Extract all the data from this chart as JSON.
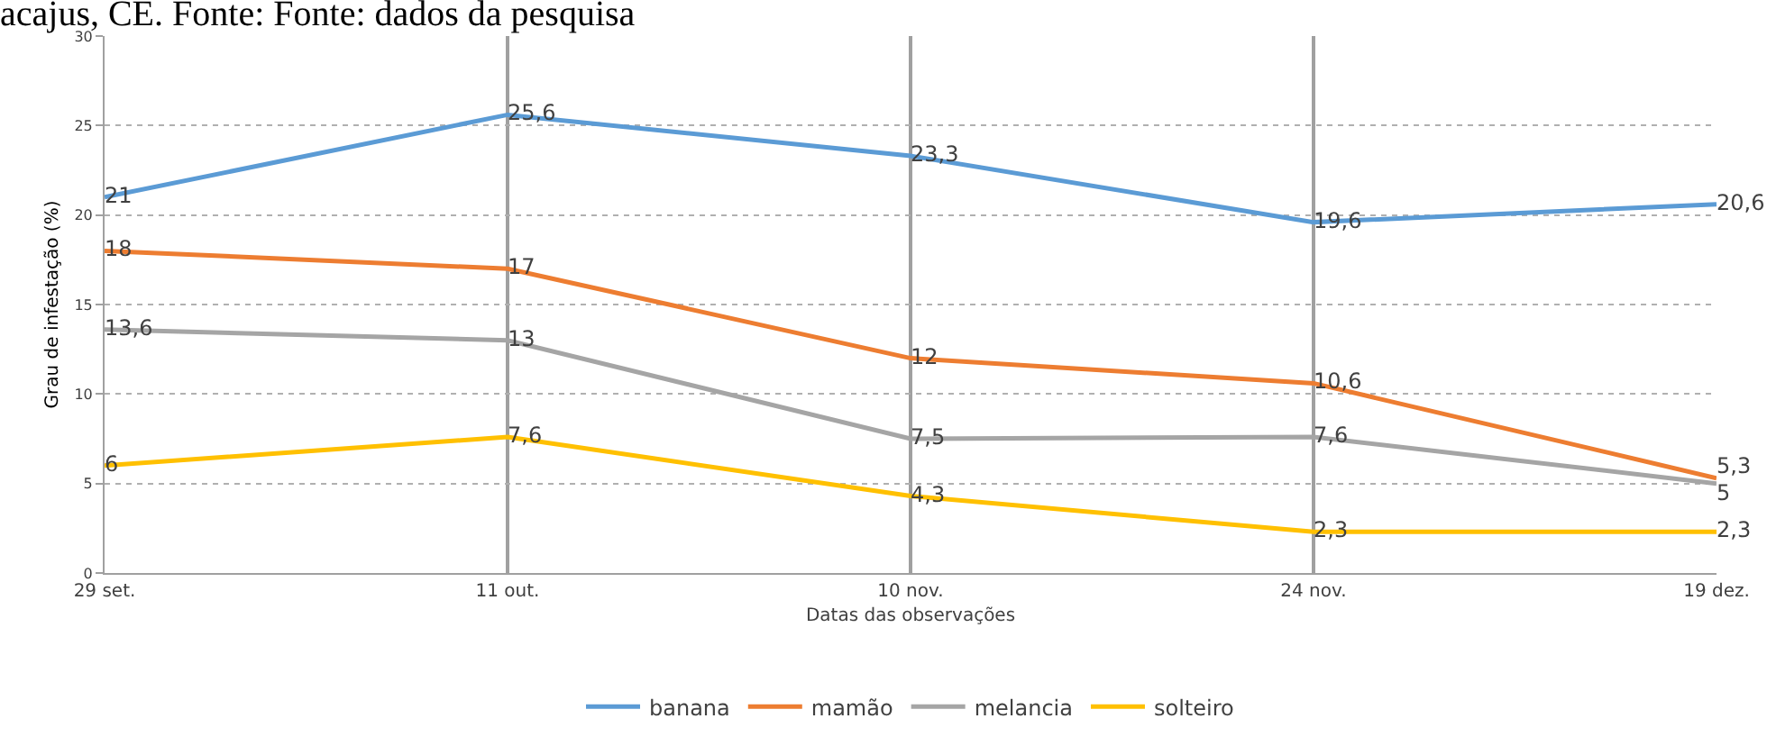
{
  "chart_data": {
    "type": "line",
    "title": "acajus, CE. Fonte: Fonte: dados da pesquisa",
    "xlabel": "Datas das observações",
    "ylabel": "Grau de infestação (%)",
    "categories": [
      "29 set.",
      "11 out.",
      "10 nov.",
      "24 nov.",
      "19 dez."
    ],
    "series": [
      {
        "name": "banana",
        "color": "#5b9bd5",
        "values": [
          21,
          25.6,
          23.3,
          19.6,
          20.6
        ],
        "value_labels": [
          "21",
          "25,6",
          "23,3",
          "19,6",
          "20,6"
        ]
      },
      {
        "name": "mamão",
        "color": "#ed7d31",
        "values": [
          18,
          17,
          12,
          10.6,
          5.3
        ],
        "value_labels": [
          "18",
          "17",
          "12",
          "10,6",
          "5,3"
        ]
      },
      {
        "name": "melancia",
        "color": "#a5a5a5",
        "values": [
          13.6,
          13,
          7.5,
          7.6,
          5
        ],
        "value_labels": [
          "13,6",
          "13",
          "7,5",
          "7,6",
          "5"
        ]
      },
      {
        "name": "solteiro",
        "color": "#ffc000",
        "values": [
          6,
          7.6,
          4.3,
          2.3,
          2.3
        ],
        "value_labels": [
          "6",
          "7,6",
          "4,3",
          "2,3",
          "2,3"
        ]
      }
    ],
    "ylim": [
      0,
      30
    ],
    "yticks": [
      0,
      5,
      10,
      15,
      20,
      25,
      30
    ],
    "grid": true,
    "legend": "bottom",
    "marker": "none",
    "line_style": "solid"
  }
}
